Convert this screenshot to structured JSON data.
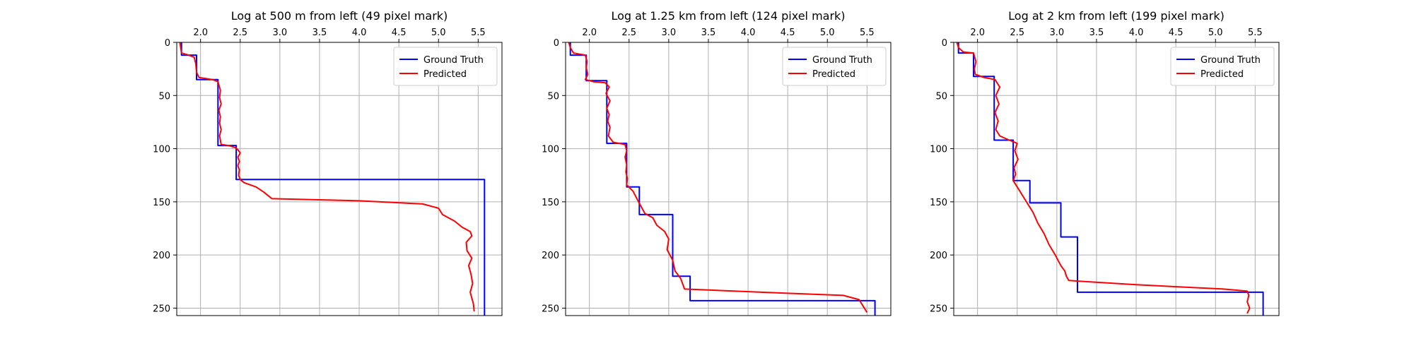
{
  "chart_data": [
    {
      "type": "line",
      "title": "Log at 500 m from left (49 pixel mark)",
      "xlim": [
        1.7,
        5.8
      ],
      "ylim": [
        257,
        0
      ],
      "x_ticks": [
        "2.0",
        "2.5",
        "3.0",
        "3.5",
        "4.0",
        "4.5",
        "5.0",
        "5.5"
      ],
      "y_ticks": [
        "0",
        "50",
        "100",
        "150",
        "200",
        "250"
      ],
      "legend": "top-right",
      "grid": true,
      "series": [
        {
          "name": "Ground Truth",
          "color": "#0000ff",
          "x": [
            1.76,
            1.76,
            1.95,
            1.95,
            2.22,
            2.22,
            2.45,
            2.45,
            5.58,
            5.58
          ],
          "y": [
            0,
            12,
            12,
            35,
            35,
            97,
            97,
            129,
            129,
            257
          ]
        },
        {
          "name": "Predicted",
          "color": "#ff0000",
          "x": [
            1.74,
            1.75,
            1.76,
            1.85,
            1.92,
            1.94,
            1.95,
            1.98,
            2.15,
            2.22,
            2.25,
            2.24,
            2.26,
            2.23,
            2.25,
            2.24,
            2.26,
            2.24,
            2.25,
            2.26,
            2.35,
            2.44,
            2.47,
            2.5,
            2.47,
            2.49,
            2.47,
            2.49,
            2.48,
            2.5,
            2.55,
            2.7,
            2.8,
            2.9,
            4.0,
            4.8,
            5.0,
            5.05,
            5.2,
            5.3,
            5.4,
            5.42,
            5.35,
            5.36,
            5.42,
            5.38,
            5.41,
            5.43,
            5.4,
            5.44,
            5.45
          ],
          "y": [
            0,
            5,
            10,
            12,
            14,
            20,
            28,
            33,
            35,
            37,
            45,
            52,
            58,
            64,
            70,
            76,
            82,
            88,
            92,
            96,
            97,
            99,
            101,
            104,
            108,
            112,
            116,
            120,
            125,
            129,
            132,
            136,
            141,
            147,
            149,
            152,
            156,
            162,
            168,
            174,
            178,
            182,
            188,
            196,
            203,
            210,
            218,
            227,
            235,
            246,
            253
          ]
        }
      ]
    },
    {
      "type": "line",
      "title": "Log at 1.25 km from left (124 pixel mark)",
      "xlim": [
        1.7,
        5.8
      ],
      "ylim": [
        257,
        0
      ],
      "x_ticks": [
        "2.0",
        "2.5",
        "3.0",
        "3.5",
        "4.0",
        "4.5",
        "5.0",
        "5.5"
      ],
      "y_ticks": [
        "0",
        "50",
        "100",
        "150",
        "200",
        "250"
      ],
      "legend": "top-right",
      "grid": true,
      "series": [
        {
          "name": "Ground Truth",
          "color": "#0000ff",
          "x": [
            1.76,
            1.76,
            1.96,
            1.96,
            2.22,
            2.22,
            2.47,
            2.47,
            2.63,
            2.63,
            3.05,
            3.05,
            3.27,
            3.27,
            5.6,
            5.6
          ],
          "y": [
            0,
            12,
            12,
            36,
            36,
            95,
            95,
            136,
            136,
            162,
            162,
            220,
            220,
            243,
            243,
            257
          ]
        },
        {
          "name": "Predicted",
          "color": "#ff0000",
          "x": [
            1.74,
            1.76,
            1.8,
            1.95,
            1.97,
            1.96,
            1.98,
            1.95,
            2.05,
            2.2,
            2.25,
            2.21,
            2.26,
            2.22,
            2.25,
            2.23,
            2.26,
            2.24,
            2.3,
            2.45,
            2.47,
            2.45,
            2.47,
            2.46,
            2.48,
            2.47,
            2.55,
            2.62,
            2.7,
            2.8,
            2.85,
            2.95,
            3.0,
            2.98,
            3.05,
            3.08,
            3.15,
            3.2,
            4.5,
            5.2,
            5.4,
            5.45,
            5.5
          ],
          "y": [
            0,
            5,
            10,
            12,
            18,
            24,
            30,
            35,
            37,
            38,
            42,
            48,
            55,
            62,
            68,
            74,
            80,
            88,
            94,
            96,
            102,
            108,
            115,
            122,
            128,
            134,
            140,
            150,
            161,
            165,
            172,
            178,
            185,
            195,
            205,
            215,
            222,
            232,
            236,
            238,
            242,
            248,
            254
          ]
        }
      ]
    },
    {
      "type": "line",
      "title": "Log at 2 km from left (199 pixel mark)",
      "xlim": [
        1.7,
        5.8
      ],
      "ylim": [
        257,
        0
      ],
      "x_ticks": [
        "2.0",
        "2.5",
        "3.0",
        "3.5",
        "4.0",
        "4.5",
        "5.0",
        "5.5"
      ],
      "y_ticks": [
        "0",
        "50",
        "100",
        "150",
        "200",
        "250"
      ],
      "legend": "top-right",
      "grid": true,
      "series": [
        {
          "name": "Ground Truth",
          "color": "#0000ff",
          "x": [
            1.76,
            1.76,
            1.95,
            1.95,
            2.21,
            2.21,
            2.45,
            2.45,
            2.66,
            2.66,
            3.05,
            3.05,
            3.26,
            3.26,
            5.6,
            5.6
          ],
          "y": [
            0,
            10,
            10,
            32,
            32,
            92,
            92,
            130,
            130,
            151,
            151,
            183,
            183,
            235,
            235,
            257
          ]
        },
        {
          "name": "Predicted",
          "color": "#ff0000",
          "x": [
            1.74,
            1.76,
            1.82,
            1.95,
            1.98,
            1.96,
            1.97,
            2.08,
            2.22,
            2.28,
            2.23,
            2.27,
            2.22,
            2.26,
            2.23,
            2.28,
            2.4,
            2.5,
            2.47,
            2.51,
            2.46,
            2.48,
            2.45,
            2.5,
            2.6,
            2.7,
            2.76,
            2.84,
            2.9,
            2.98,
            3.05,
            3.1,
            3.12,
            3.15,
            4.0,
            5.1,
            5.4,
            5.42,
            5.4,
            5.43,
            5.4
          ],
          "y": [
            0,
            5,
            9,
            10,
            18,
            25,
            30,
            33,
            35,
            42,
            50,
            58,
            66,
            74,
            82,
            88,
            92,
            95,
            102,
            110,
            118,
            124,
            130,
            136,
            148,
            160,
            170,
            180,
            190,
            200,
            210,
            215,
            220,
            224,
            228,
            232,
            234,
            238,
            244,
            250,
            255
          ]
        }
      ]
    }
  ]
}
